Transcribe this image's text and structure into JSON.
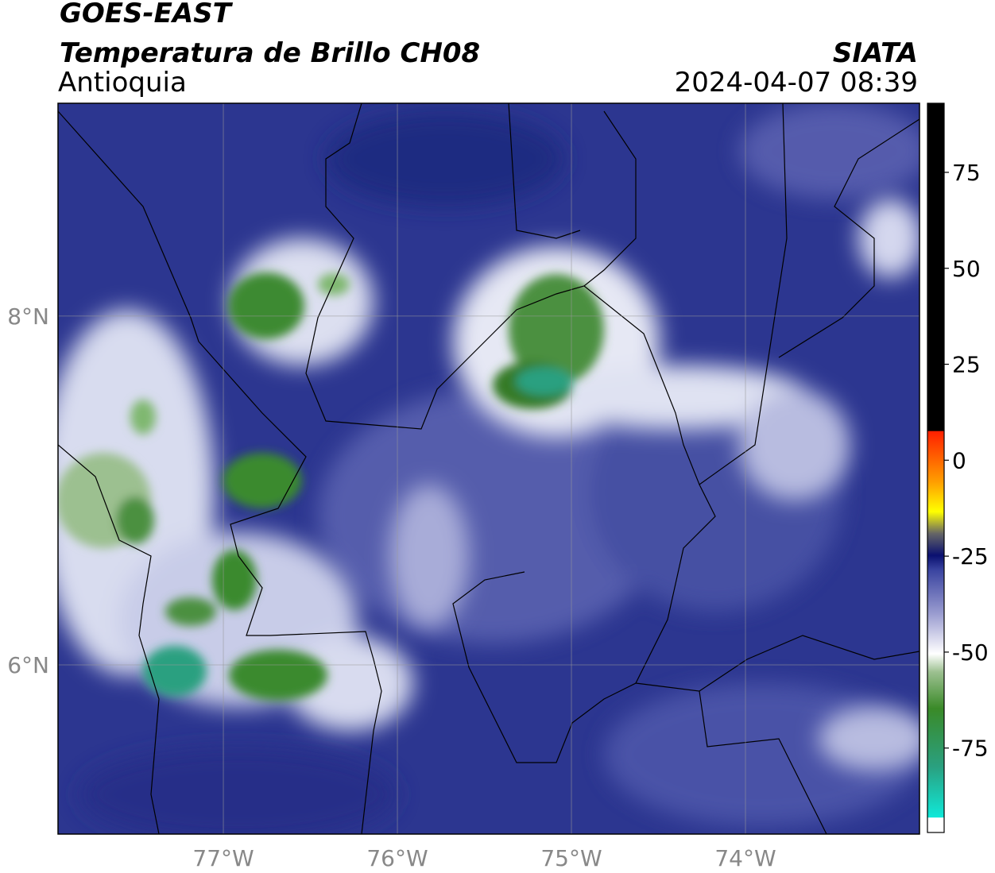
{
  "header": {
    "title": "GOES-EAST",
    "subtitle": "Temperatura de Brillo CH08",
    "region": "Antioquia",
    "source": "SIATA",
    "datetime": "2024-04-07 08:39"
  },
  "map": {
    "lon_range": [
      -77.95,
      -73.0
    ],
    "lat_range": [
      5.03,
      9.22
    ],
    "lon_ticks": [
      {
        "value": -77,
        "label": "77°W"
      },
      {
        "value": -76,
        "label": "76°W"
      },
      {
        "value": -75,
        "label": "75°W"
      },
      {
        "value": -74,
        "label": "74°W"
      }
    ],
    "lat_ticks": [
      {
        "value": 8,
        "label": "8°N"
      },
      {
        "value": 6,
        "label": "6°N"
      }
    ]
  },
  "colorbar": {
    "range": [
      -97,
      93
    ],
    "ticks": [
      75,
      50,
      25,
      0,
      -25,
      -50,
      -75
    ]
  }
}
